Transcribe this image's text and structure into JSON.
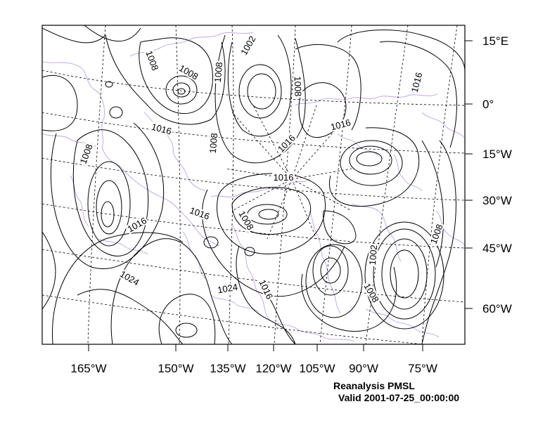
{
  "map": {
    "right_axis_labels": [
      "15°E",
      "0°",
      "15°W",
      "30°W",
      "45°W",
      "60°W"
    ],
    "bottom_axis_labels": [
      "165°W",
      "150°W",
      "135°W",
      "120°W",
      "105°W",
      "90°W",
      "75°W"
    ],
    "contour_labels": [
      "1008",
      "1008",
      "1008",
      "1002",
      "1008",
      "1016",
      "1016",
      "1008",
      "1016",
      "1008",
      "1016",
      "1016",
      "1016",
      "1008",
      "1024",
      "1024",
      "1016",
      "1002",
      "1008",
      "1008"
    ],
    "colors": {
      "contour": "#000000",
      "coastline": "#b59bd6",
      "graticule": "#000000"
    }
  },
  "caption": {
    "line1": "Reanalysis PMSL",
    "line2": "Valid 2001-07-25_00:00:00"
  }
}
